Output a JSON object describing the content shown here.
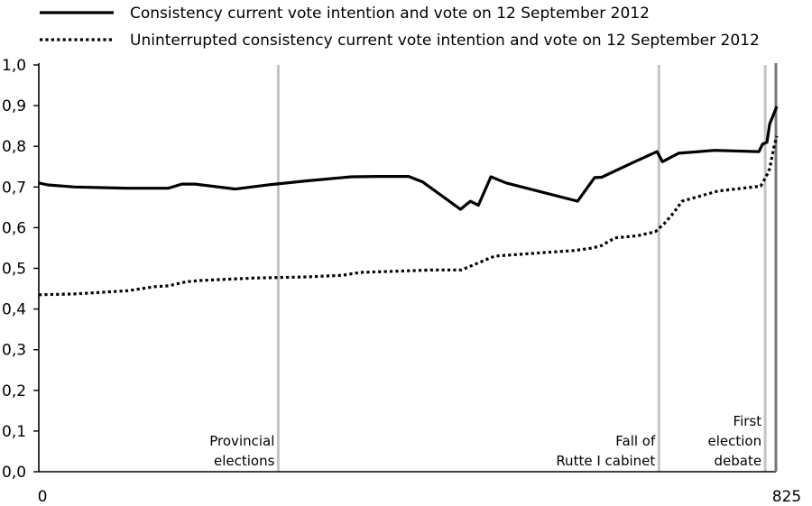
{
  "chart_data": {
    "type": "line",
    "title": "",
    "xlabel": "",
    "ylabel": "",
    "xlim": [
      0,
      825
    ],
    "ylim": [
      0,
      1.0
    ],
    "x_tick_labels": [
      "0",
      "825"
    ],
    "y_tick_labels": [
      "0,0",
      "0,1",
      "0,2",
      "0,3",
      "0,4",
      "0,5",
      "0,6",
      "0,7",
      "0,8",
      "0,9",
      "1,0"
    ],
    "grid": false,
    "legend_position": "top",
    "series": [
      {
        "name": "Consistency current vote intention and vote on 12 September 2012",
        "style": "solid",
        "color": "#000000",
        "points": [
          [
            0,
            0.71
          ],
          [
            10,
            0.705
          ],
          [
            40,
            0.7
          ],
          [
            100,
            0.697
          ],
          [
            145,
            0.697
          ],
          [
            160,
            0.707
          ],
          [
            175,
            0.707
          ],
          [
            220,
            0.695
          ],
          [
            260,
            0.706
          ],
          [
            300,
            0.715
          ],
          [
            350,
            0.725
          ],
          [
            380,
            0.726
          ],
          [
            414,
            0.726
          ],
          [
            430,
            0.712
          ],
          [
            472,
            0.645
          ],
          [
            483,
            0.665
          ],
          [
            492,
            0.655
          ],
          [
            506,
            0.725
          ],
          [
            523,
            0.71
          ],
          [
            603,
            0.665
          ],
          [
            622,
            0.723
          ],
          [
            630,
            0.724
          ],
          [
            667,
            0.762
          ],
          [
            692,
            0.787
          ],
          [
            698,
            0.762
          ],
          [
            716,
            0.783
          ],
          [
            756,
            0.79
          ],
          [
            806,
            0.787
          ],
          [
            810,
            0.805
          ],
          [
            815,
            0.81
          ],
          [
            818,
            0.855
          ],
          [
            826,
            0.898
          ]
        ]
      },
      {
        "name": "Uninterrupted consistency current vote intention and vote on 12 September 2012",
        "style": "dotted",
        "color": "#000000",
        "points": [
          [
            0,
            0.435
          ],
          [
            40,
            0.437
          ],
          [
            100,
            0.445
          ],
          [
            130,
            0.455
          ],
          [
            145,
            0.457
          ],
          [
            165,
            0.467
          ],
          [
            180,
            0.47
          ],
          [
            240,
            0.476
          ],
          [
            300,
            0.479
          ],
          [
            340,
            0.483
          ],
          [
            360,
            0.49
          ],
          [
            400,
            0.493
          ],
          [
            440,
            0.496
          ],
          [
            473,
            0.496
          ],
          [
            510,
            0.53
          ],
          [
            560,
            0.538
          ],
          [
            600,
            0.544
          ],
          [
            620,
            0.55
          ],
          [
            630,
            0.556
          ],
          [
            645,
            0.575
          ],
          [
            670,
            0.58
          ],
          [
            690,
            0.59
          ],
          [
            700,
            0.61
          ],
          [
            710,
            0.635
          ],
          [
            720,
            0.665
          ],
          [
            760,
            0.69
          ],
          [
            808,
            0.702
          ],
          [
            815,
            0.73
          ],
          [
            818,
            0.745
          ],
          [
            823,
            0.8
          ],
          [
            826,
            0.825
          ]
        ]
      }
    ],
    "events": [
      {
        "x": 268,
        "lines": [
          "Provincial",
          "elections"
        ]
      },
      {
        "x": 694,
        "lines": [
          "Fall of",
          "Rutte I cabinet"
        ]
      },
      {
        "x": 813,
        "lines": [
          "First",
          "election",
          "debate"
        ]
      }
    ]
  }
}
